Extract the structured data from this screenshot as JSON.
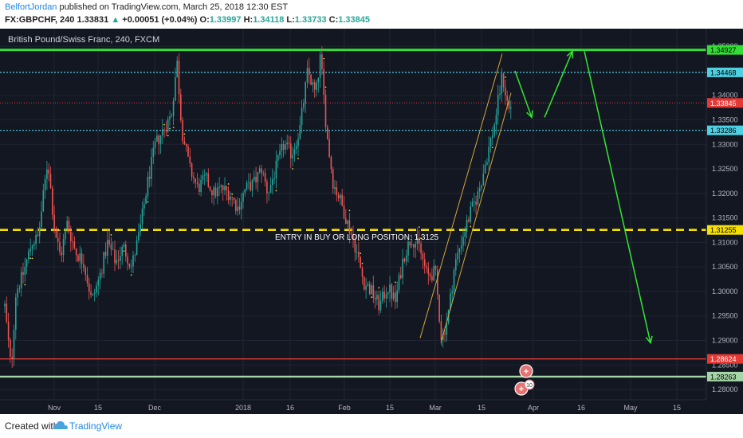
{
  "header": {
    "author": "BelfortJordan",
    "published": " published on TradingView.com, March 25, 2018 12:30 EST",
    "symbol": "FX:GBPCHF, 240",
    "last": "1.33831",
    "change": "+0.00051 (+0.04%)",
    "ohlc": {
      "o_label": "O:",
      "o": "1.33997",
      "h_label": "H:",
      "h": "1.34118",
      "l_label": "L:",
      "l": "1.33733",
      "c_label": "C:",
      "c": "1.33845"
    }
  },
  "footer": {
    "created_with": "Created with",
    "brand": "TradingView"
  },
  "colors": {
    "background": "#131722",
    "grid": "#1f2433",
    "up": "#26a69a",
    "down": "#ef5350",
    "green_line": "#33dd33",
    "cyan_line": "#4dd0e1",
    "yellow_line": "#f5e000",
    "red_line": "#e53935",
    "light_green_line": "#a5d6a7",
    "arrow": "#34e534",
    "channel": "#d4a63a"
  },
  "chart_data": {
    "type": "candlestick",
    "title": "British Pound/Swiss Franc, 240, FXCM",
    "xlabel": "",
    "ylabel": "",
    "ylim": [
      1.278,
      1.3505
    ],
    "grid": true,
    "y_ticks": [
      "1.35000",
      "1.34000",
      "1.33500",
      "1.33000",
      "1.32500",
      "1.32000",
      "1.31500",
      "1.31000",
      "1.30500",
      "1.30000",
      "1.29500",
      "1.29000",
      "1.28500",
      "1.28000"
    ],
    "x_ticks": [
      "Nov",
      "15",
      "Dec",
      "2018",
      "16",
      "Feb",
      "15",
      "Mar",
      "15",
      "Apr",
      "16",
      "May",
      "15"
    ],
    "price_path": [
      [
        1.297,
        6
      ],
      [
        1.284,
        14
      ],
      [
        1.3,
        20
      ],
      [
        1.303,
        28
      ],
      [
        1.31,
        40
      ],
      [
        1.311,
        48
      ],
      [
        1.327,
        60
      ],
      [
        1.313,
        68
      ],
      [
        1.307,
        76
      ],
      [
        1.314,
        84
      ],
      [
        1.308,
        95
      ],
      [
        1.306,
        105
      ],
      [
        1.298,
        115
      ],
      [
        1.303,
        125
      ],
      [
        1.31,
        135
      ],
      [
        1.306,
        145
      ],
      [
        1.309,
        155
      ],
      [
        1.305,
        165
      ],
      [
        1.312,
        175
      ],
      [
        1.322,
        185
      ],
      [
        1.33,
        195
      ],
      [
        1.333,
        205
      ],
      [
        1.336,
        215
      ],
      [
        1.347,
        222
      ],
      [
        1.333,
        228
      ],
      [
        1.325,
        238
      ],
      [
        1.321,
        248
      ],
      [
        1.323,
        258
      ],
      [
        1.32,
        268
      ],
      [
        1.321,
        278
      ],
      [
        1.32,
        288
      ],
      [
        1.317,
        298
      ],
      [
        1.321,
        308
      ],
      [
        1.322,
        318
      ],
      [
        1.325,
        328
      ],
      [
        1.32,
        336
      ],
      [
        1.325,
        346
      ],
      [
        1.33,
        356
      ],
      [
        1.328,
        366
      ],
      [
        1.333,
        376
      ],
      [
        1.345,
        386
      ],
      [
        1.34,
        396
      ],
      [
        1.348,
        402
      ],
      [
        1.332,
        410
      ],
      [
        1.322,
        418
      ],
      [
        1.319,
        426
      ],
      [
        1.314,
        436
      ],
      [
        1.309,
        446
      ],
      [
        1.302,
        456
      ],
      [
        1.3,
        466
      ],
      [
        1.297,
        476
      ],
      [
        1.301,
        486
      ],
      [
        1.298,
        496
      ],
      [
        1.307,
        506
      ],
      [
        1.311,
        516
      ],
      [
        1.309,
        526
      ],
      [
        1.303,
        536
      ],
      [
        1.304,
        546
      ],
      [
        1.29,
        554
      ],
      [
        1.295,
        562
      ],
      [
        1.305,
        570
      ],
      [
        1.311,
        580
      ],
      [
        1.316,
        590
      ],
      [
        1.32,
        600
      ],
      [
        1.327,
        610
      ],
      [
        1.334,
        620
      ],
      [
        1.344,
        630
      ],
      [
        1.337,
        638
      ],
      [
        1.338,
        642
      ]
    ],
    "horizontal_levels": [
      {
        "price": 1.34927,
        "label": "1.34927",
        "style": "solid-green"
      },
      {
        "price": 1.34468,
        "label": "1.34468",
        "style": "dotted-cyan"
      },
      {
        "price": 1.33845,
        "label": "1.33845",
        "style": "dotted-red"
      },
      {
        "price": 1.33286,
        "label": "1.33286",
        "style": "dotted-cyan"
      },
      {
        "price": 1.31255,
        "label": "1.31255",
        "style": "dashed-yellow"
      },
      {
        "price": 1.28624,
        "label": "1.28624",
        "style": "solid-red"
      },
      {
        "price": 1.28263,
        "label": "1.28263",
        "style": "solid-lightgreen"
      }
    ],
    "annotations": [
      {
        "text": "ENTRY IN  BUY OR LONG POSITION: 1.3125",
        "price": 1.3125
      }
    ],
    "event_badge": "10"
  }
}
